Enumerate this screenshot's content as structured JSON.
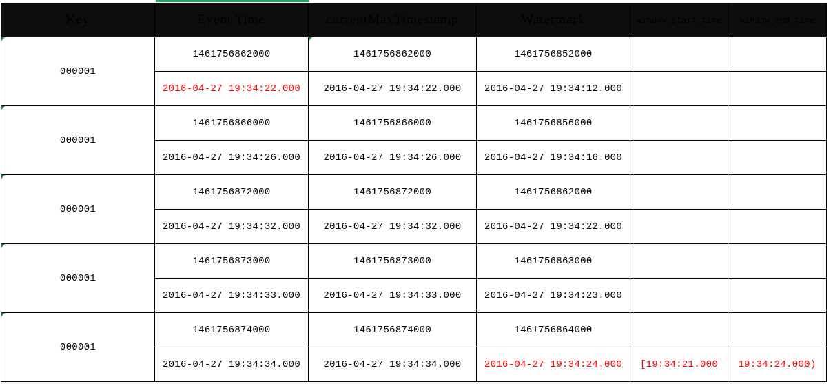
{
  "headers": {
    "key": "Key",
    "event_time": "Event Time",
    "current_max_timestamp": "currentMaxTimestamp",
    "watermark": "Watermark",
    "window_start_time": "window_start_time",
    "window_end_time": "window_end_time"
  },
  "colors": {
    "header_bg": "#0d0d0d",
    "header_text": "#ff0000",
    "highlight_text": "#ff0000",
    "grid_line": "#000000"
  },
  "rows": [
    {
      "key": "000001",
      "event_ts": "1461756862000",
      "event_time": "2016-04-27 19:34:22.000",
      "max_ts": "1461756862000",
      "max_time": "2016-04-27 19:34:22.000",
      "wm_ts": "1461756852000",
      "wm_time": "2016-04-27 19:34:12.000",
      "window_start": "",
      "window_end": ""
    },
    {
      "key": "000001",
      "event_ts": "1461756866000",
      "event_time": "2016-04-27 19:34:26.000",
      "max_ts": "1461756866000",
      "max_time": "2016-04-27 19:34:26.000",
      "wm_ts": "1461756856000",
      "wm_time": "2016-04-27 19:34:16.000",
      "window_start": "",
      "window_end": ""
    },
    {
      "key": "000001",
      "event_ts": "1461756872000",
      "event_time": "2016-04-27 19:34:32.000",
      "max_ts": "1461756872000",
      "max_time": "2016-04-27 19:34:32.000",
      "wm_ts": "1461756862000",
      "wm_time": "2016-04-27 19:34:22.000",
      "window_start": "",
      "window_end": ""
    },
    {
      "key": "000001",
      "event_ts": "1461756873000",
      "event_time": "2016-04-27 19:34:33.000",
      "max_ts": "1461756873000",
      "max_time": "2016-04-27 19:34:33.000",
      "wm_ts": "1461756863000",
      "wm_time": "2016-04-27 19:34:23.000",
      "window_start": "",
      "window_end": ""
    },
    {
      "key": "000001",
      "event_ts": "1461756874000",
      "event_time": "2016-04-27 19:34:34.000",
      "max_ts": "1461756874000",
      "max_time": "2016-04-27 19:34:34.000",
      "wm_ts": "1461756864000",
      "wm_time": "2016-04-27 19:34:24.000",
      "window_start": "[19:34:21.000",
      "window_end": "19:34:24.000)"
    }
  ]
}
